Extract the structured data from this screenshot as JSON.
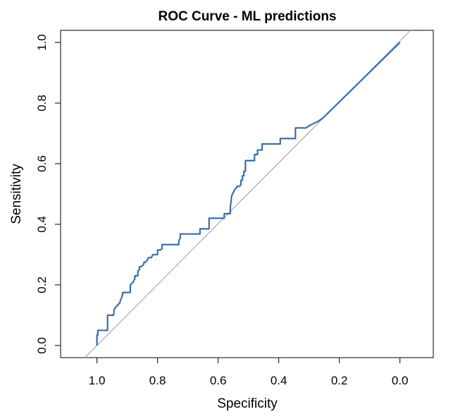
{
  "chart_data": {
    "type": "line",
    "title": "ROC Curve - ML predictions",
    "xlabel": "Specificity",
    "ylabel": "Sensitivity",
    "x_reversed": true,
    "xlim": [
      1.12,
      -0.11
    ],
    "ylim": [
      -0.04,
      1.04
    ],
    "xticks": [
      1.0,
      0.8,
      0.6,
      0.4,
      0.2,
      0.0
    ],
    "xtick_labels": [
      "1.0",
      "0.8",
      "0.6",
      "0.4",
      "0.2",
      "0.0"
    ],
    "yticks": [
      0.0,
      0.2,
      0.4,
      0.6,
      0.8,
      1.0
    ],
    "ytick_labels": [
      "0.0",
      "0.2",
      "0.4",
      "0.6",
      "0.8",
      "1.0"
    ],
    "grid": false,
    "legend": "none",
    "reference_line": {
      "x": [
        1.04,
        -0.035
      ],
      "y": [
        -0.04,
        1.04
      ],
      "color": "#aaaaaa"
    },
    "series": [
      {
        "color": "#3a6fa8",
        "x": [
          1.0,
          1.0,
          1.0,
          0.997,
          0.997,
          0.965,
          0.965,
          0.945,
          0.943,
          0.935,
          0.925,
          0.922,
          0.92,
          0.918,
          0.915,
          0.915,
          0.89,
          0.89,
          0.885,
          0.88,
          0.878,
          0.875,
          0.875,
          0.865,
          0.865,
          0.86,
          0.86,
          0.855,
          0.848,
          0.845,
          0.845,
          0.84,
          0.835,
          0.832,
          0.83,
          0.82,
          0.818,
          0.815,
          0.8,
          0.8,
          0.79,
          0.785,
          0.785,
          0.73,
          0.73,
          0.725,
          0.725,
          0.66,
          0.66,
          0.63,
          0.63,
          0.58,
          0.58,
          0.56,
          0.56,
          0.558,
          0.557,
          0.555,
          0.55,
          0.545,
          0.54,
          0.538,
          0.53,
          0.525,
          0.525,
          0.52,
          0.52,
          0.515,
          0.515,
          0.51,
          0.51,
          0.48,
          0.48,
          0.47,
          0.47,
          0.465,
          0.46,
          0.455,
          0.455,
          0.445,
          0.445,
          0.395,
          0.395,
          0.345,
          0.345,
          0.31,
          0.3,
          0.29,
          0.27,
          0.255,
          0.0
        ],
        "y": [
          0.0,
          0.02,
          0.035,
          0.035,
          0.05,
          0.05,
          0.1,
          0.1,
          0.12,
          0.13,
          0.14,
          0.15,
          0.155,
          0.16,
          0.17,
          0.175,
          0.175,
          0.2,
          0.205,
          0.21,
          0.215,
          0.22,
          0.23,
          0.23,
          0.245,
          0.25,
          0.26,
          0.26,
          0.265,
          0.27,
          0.275,
          0.275,
          0.28,
          0.285,
          0.29,
          0.29,
          0.295,
          0.3,
          0.3,
          0.315,
          0.315,
          0.32,
          0.333,
          0.333,
          0.345,
          0.355,
          0.368,
          0.368,
          0.385,
          0.385,
          0.42,
          0.42,
          0.435,
          0.435,
          0.455,
          0.47,
          0.48,
          0.495,
          0.505,
          0.515,
          0.52,
          0.525,
          0.525,
          0.53,
          0.545,
          0.545,
          0.56,
          0.56,
          0.575,
          0.575,
          0.61,
          0.61,
          0.63,
          0.63,
          0.645,
          0.645,
          0.645,
          0.645,
          0.665,
          0.665,
          0.665,
          0.665,
          0.683,
          0.683,
          0.718,
          0.718,
          0.725,
          0.73,
          0.74,
          0.75,
          1.0
        ]
      }
    ]
  }
}
